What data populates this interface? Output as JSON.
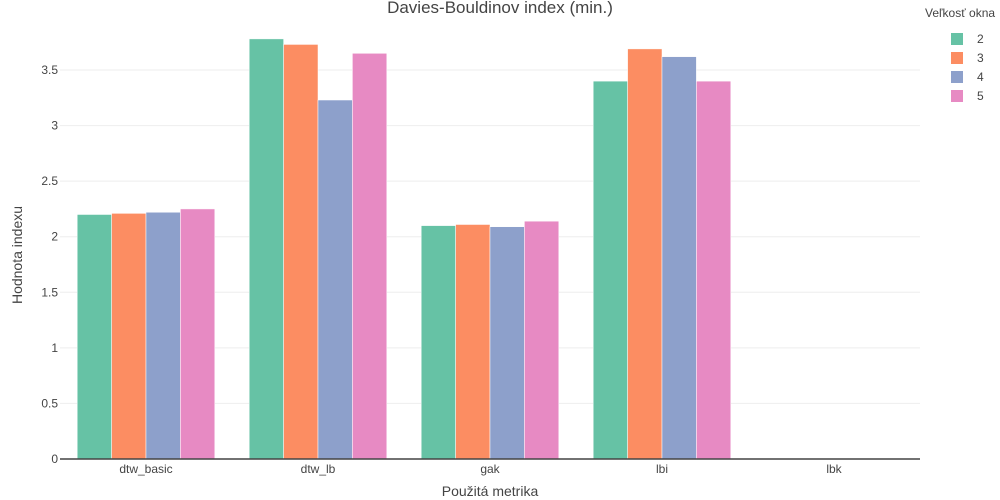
{
  "chart_data": {
    "type": "bar",
    "title": "Davies-Bouldinov index (min.)",
    "xlabel": "Použitá metrika",
    "ylabel": "Hodnota indexu",
    "categories": [
      "dtw_basic",
      "dtw_lb",
      "gak",
      "lbi",
      "lbk"
    ],
    "ylim": [
      0,
      3.95
    ],
    "yticks": [
      0,
      0.5,
      1,
      1.5,
      2,
      2.5,
      3,
      3.5
    ],
    "ytick_labels": [
      "0",
      "0.5",
      "1",
      "1.5",
      "2",
      "2.5",
      "3",
      "3.5"
    ],
    "grid": true,
    "legend": {
      "title": "Veľkosť okna",
      "position": "top-right"
    },
    "series": [
      {
        "name": "2",
        "color": "#66c2a5",
        "values": [
          2.2,
          3.78,
          2.1,
          3.4,
          0
        ]
      },
      {
        "name": "3",
        "color": "#fc8d62",
        "values": [
          2.21,
          3.73,
          2.11,
          3.69,
          0
        ]
      },
      {
        "name": "4",
        "color": "#8da0cb",
        "values": [
          2.22,
          3.23,
          2.09,
          3.62,
          0
        ]
      },
      {
        "name": "5",
        "color": "#e78ac3",
        "values": [
          2.25,
          3.65,
          2.14,
          3.4,
          0
        ]
      }
    ]
  }
}
